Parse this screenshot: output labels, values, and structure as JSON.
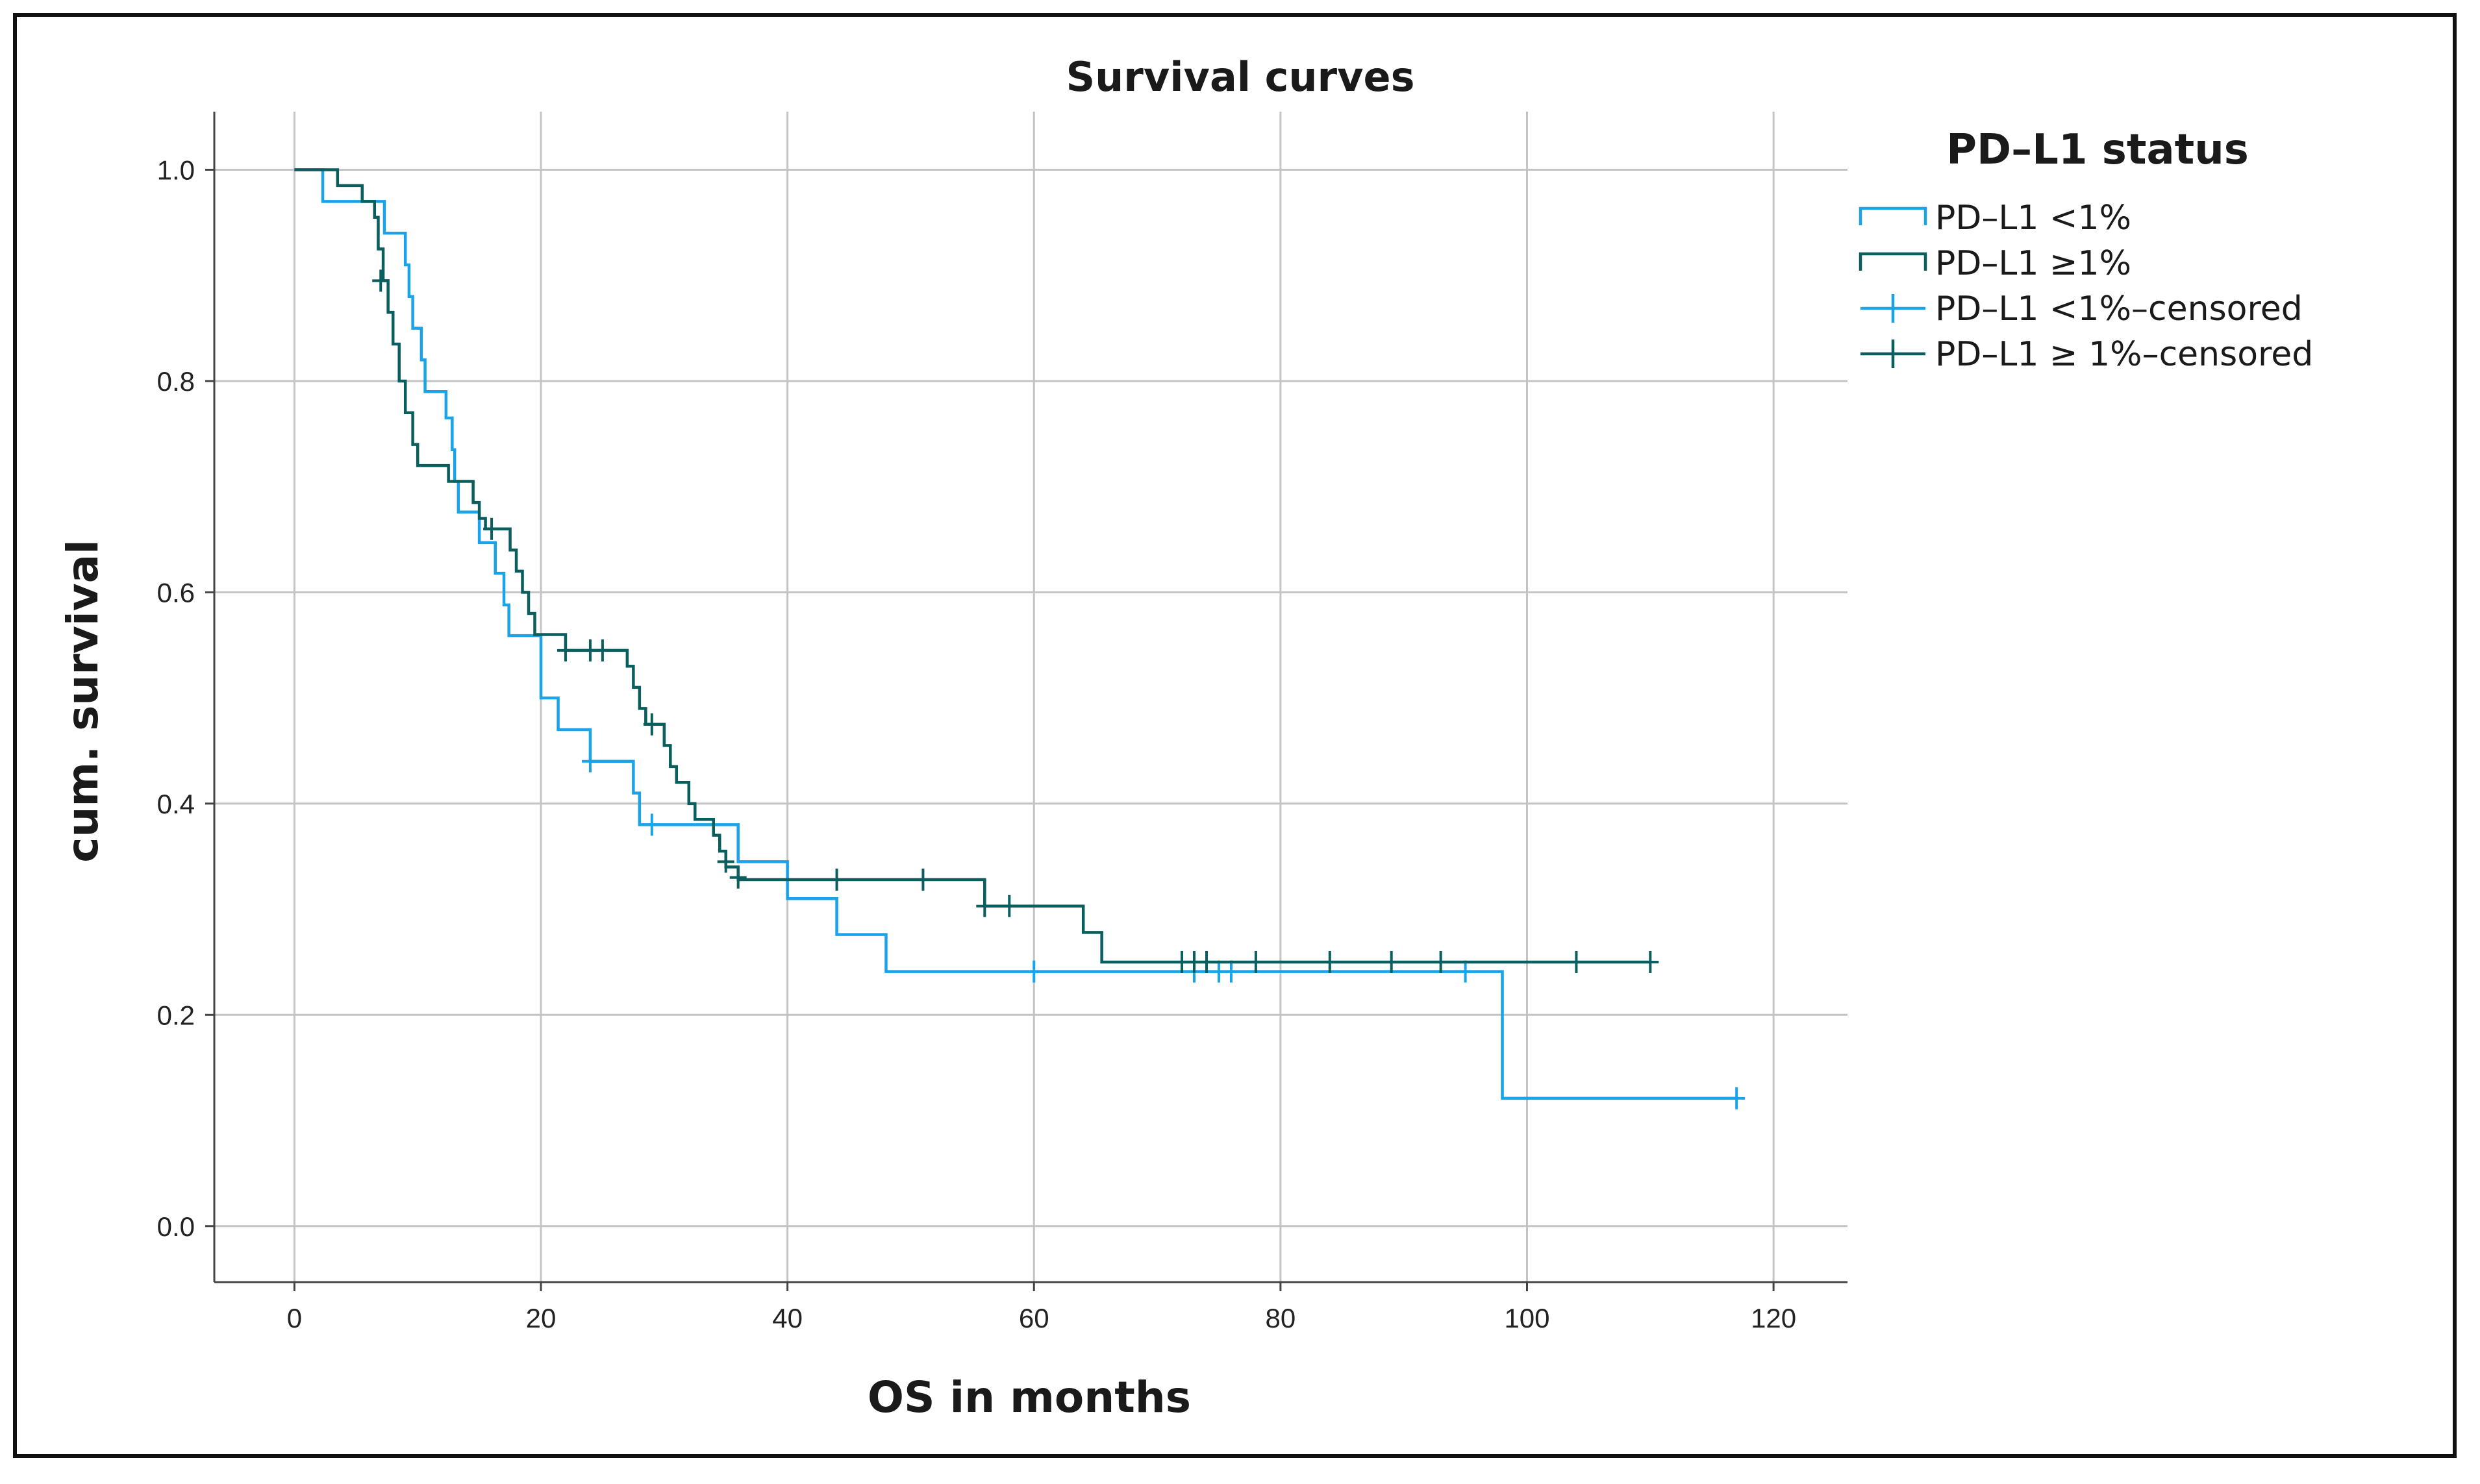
{
  "chart_data": {
    "type": "line",
    "subtype": "kaplan-meier",
    "title": "Survival curves",
    "xlabel": "OS in months",
    "ylabel": "cum. survival",
    "xlim": [
      -6.5,
      126
    ],
    "ylim": [
      -0.053,
      1.055
    ],
    "x_ticks": [
      0,
      20,
      40,
      60,
      80,
      100,
      120
    ],
    "y_ticks": [
      0.0,
      0.2,
      0.4,
      0.6,
      0.8,
      1.0
    ],
    "x_tick_labels": [
      "0",
      "20",
      "40",
      "60",
      "80",
      "100",
      "120"
    ],
    "y_tick_labels": [
      "0.0",
      "0.2",
      "0.4",
      "0.6",
      "0.8",
      "1.0"
    ],
    "grid": true,
    "legend": {
      "title": "PD–L1 status",
      "placement": "right",
      "entries": [
        {
          "label": "PD–L1 <1%",
          "kind": "step",
          "color": "#1aa3e8"
        },
        {
          "label": "PD–L1 ≥1%",
          "kind": "step",
          "color": "#0b5e5e"
        },
        {
          "label": "PD–L1 <1%–censored",
          "kind": "censor",
          "color": "#1aa3e8"
        },
        {
          "label": "PD–L1 ≥ 1%–censored",
          "kind": "censor",
          "color": "#0b5e5e"
        }
      ]
    },
    "series": [
      {
        "name": "PD–L1 <1%",
        "color": "#1aa3e8",
        "steps": [
          [
            0,
            1.0
          ],
          [
            2.3,
            0.97
          ],
          [
            7.3,
            0.94
          ],
          [
            9,
            0.91
          ],
          [
            9.3,
            0.88
          ],
          [
            9.6,
            0.85
          ],
          [
            10.3,
            0.82
          ],
          [
            10.6,
            0.79
          ],
          [
            12.3,
            0.765
          ],
          [
            12.8,
            0.735
          ],
          [
            13,
            0.705
          ],
          [
            13.3,
            0.676
          ],
          [
            15,
            0.647
          ],
          [
            16.3,
            0.618
          ],
          [
            17,
            0.588
          ],
          [
            17.4,
            0.559
          ],
          [
            20,
            0.5
          ],
          [
            21.4,
            0.47
          ],
          [
            24,
            0.44
          ],
          [
            27.5,
            0.41
          ],
          [
            28,
            0.38
          ],
          [
            36,
            0.345
          ],
          [
            40,
            0.31
          ],
          [
            44,
            0.276
          ],
          [
            48,
            0.241
          ],
          [
            98,
            0.121
          ],
          [
            117,
            0.121
          ]
        ],
        "censored": [
          [
            24,
            0.44
          ],
          [
            29,
            0.38
          ],
          [
            60,
            0.241
          ],
          [
            73,
            0.241
          ],
          [
            75,
            0.241
          ],
          [
            76,
            0.241
          ],
          [
            95,
            0.241
          ],
          [
            117,
            0.121
          ]
        ]
      },
      {
        "name": "PD–L1 ≥1%",
        "color": "#0b5e5e",
        "steps": [
          [
            0,
            1.0
          ],
          [
            3.5,
            0.985
          ],
          [
            5.5,
            0.97
          ],
          [
            6.5,
            0.955
          ],
          [
            6.8,
            0.925
          ],
          [
            7.2,
            0.895
          ],
          [
            7.6,
            0.865
          ],
          [
            8,
            0.835
          ],
          [
            8.5,
            0.8
          ],
          [
            9,
            0.77
          ],
          [
            9.6,
            0.74
          ],
          [
            10,
            0.72
          ],
          [
            12.5,
            0.705
          ],
          [
            14.5,
            0.685
          ],
          [
            15,
            0.67
          ],
          [
            15.5,
            0.66
          ],
          [
            17.5,
            0.64
          ],
          [
            18,
            0.62
          ],
          [
            18.5,
            0.6
          ],
          [
            19,
            0.58
          ],
          [
            19.5,
            0.56
          ],
          [
            22,
            0.545
          ],
          [
            27,
            0.53
          ],
          [
            27.5,
            0.51
          ],
          [
            28,
            0.49
          ],
          [
            28.5,
            0.475
          ],
          [
            30,
            0.455
          ],
          [
            30.5,
            0.435
          ],
          [
            31,
            0.42
          ],
          [
            32,
            0.4
          ],
          [
            32.5,
            0.385
          ],
          [
            34,
            0.37
          ],
          [
            34.5,
            0.355
          ],
          [
            35,
            0.34
          ],
          [
            36,
            0.328
          ],
          [
            56,
            0.303
          ],
          [
            64,
            0.278
          ],
          [
            65.5,
            0.25
          ],
          [
            110,
            0.25
          ]
        ],
        "censored": [
          [
            7,
            0.895
          ],
          [
            16,
            0.66
          ],
          [
            22,
            0.545
          ],
          [
            24,
            0.545
          ],
          [
            25,
            0.545
          ],
          [
            29,
            0.475
          ],
          [
            35,
            0.345
          ],
          [
            36,
            0.33
          ],
          [
            44,
            0.328
          ],
          [
            51,
            0.328
          ],
          [
            56,
            0.303
          ],
          [
            58,
            0.303
          ],
          [
            72,
            0.25
          ],
          [
            73,
            0.25
          ],
          [
            74,
            0.25
          ],
          [
            78,
            0.25
          ],
          [
            84,
            0.25
          ],
          [
            89,
            0.25
          ],
          [
            93,
            0.25
          ],
          [
            104,
            0.25
          ],
          [
            110,
            0.25
          ]
        ]
      }
    ]
  }
}
